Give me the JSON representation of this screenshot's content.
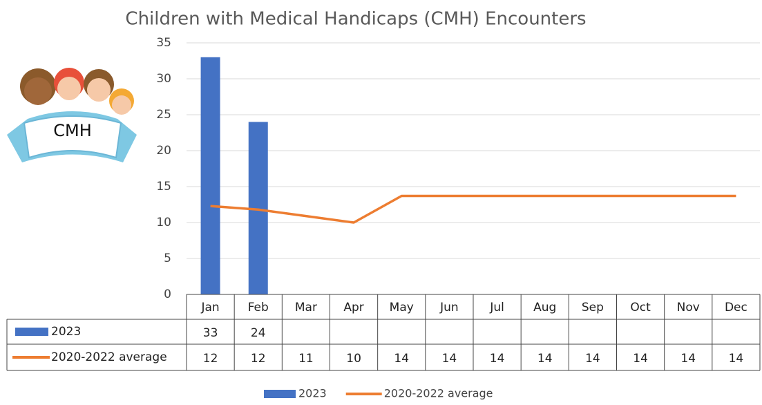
{
  "chart_data": {
    "type": "bar-line",
    "title": "Children with Medical Handicaps (CMH)  Encounters",
    "logo": "CMH",
    "categories": [
      "Jan",
      "Feb",
      "Mar",
      "Apr",
      "May",
      "Jun",
      "Jul",
      "Aug",
      "Sep",
      "Oct",
      "Nov",
      "Dec"
    ],
    "series": [
      {
        "name": "2023",
        "type": "bar",
        "color": "#4472c4",
        "values": [
          33,
          24,
          null,
          null,
          null,
          null,
          null,
          null,
          null,
          null,
          null,
          null
        ]
      },
      {
        "name": "2020-2022 average",
        "type": "line",
        "color": "#ed7d31",
        "values": [
          12.3,
          11.8,
          10.9,
          10,
          13.7,
          13.7,
          13.7,
          13.7,
          13.7,
          13.7,
          13.7,
          13.7
        ],
        "value_labels": [
          "12",
          "12",
          "11",
          "10",
          "14",
          "14",
          "14",
          "14",
          "14",
          "14",
          "14",
          "14"
        ]
      }
    ],
    "ylim": [
      0,
      35
    ],
    "yticks": [
      0,
      5,
      10,
      15,
      20,
      25,
      30,
      35
    ],
    "grid": true,
    "legend": "bottom",
    "data_table": true
  }
}
